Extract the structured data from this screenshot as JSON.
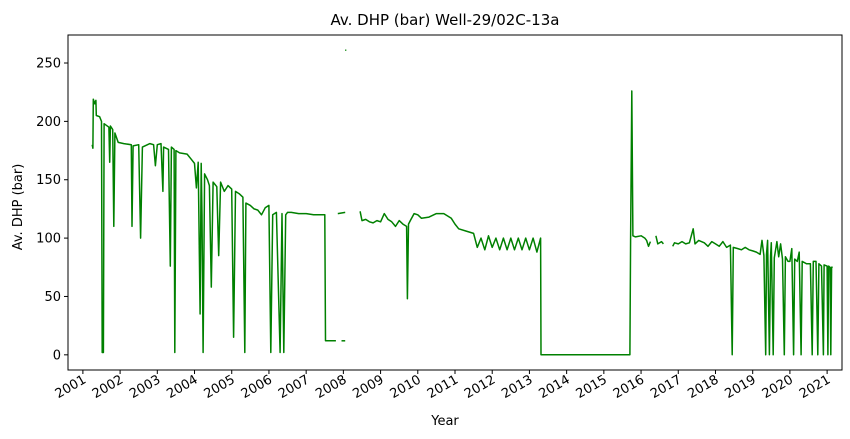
{
  "chart_data": {
    "type": "line",
    "title": "Av. DHP (bar) Well-29/02C-13a",
    "xlabel": "Year",
    "ylabel": "Av. DHP (bar)",
    "xlim": [
      2000.6,
      2021.4
    ],
    "ylim": [
      -13,
      274
    ],
    "yticks": [
      0,
      50,
      100,
      150,
      200,
      250
    ],
    "xticks": [
      "2001",
      "2002",
      "2003",
      "2004",
      "2005",
      "2006",
      "2007",
      "2008",
      "2009",
      "2010",
      "2011",
      "2012",
      "2013",
      "2014",
      "2015",
      "2016",
      "2017",
      "2018",
      "2019",
      "2020",
      "2021"
    ],
    "grid": false,
    "color": "#008000",
    "series": [
      {
        "name": "",
        "segments": [
          [
            [
              2001.25,
              180
            ],
            [
              2001.27,
              177
            ],
            [
              2001.28,
              219
            ],
            [
              2001.32,
              215
            ],
            [
              2001.35,
              218
            ],
            [
              2001.36,
              205
            ],
            [
              2001.45,
              204
            ],
            [
              2001.5,
              200
            ],
            [
              2001.52,
              2
            ],
            [
              2001.55,
              2
            ],
            [
              2001.57,
              198
            ],
            [
              2001.7,
              195
            ],
            [
              2001.72,
              165
            ],
            [
              2001.74,
              196
            ],
            [
              2001.8,
              193
            ],
            [
              2001.83,
              110
            ],
            [
              2001.86,
              190
            ],
            [
              2001.95,
              182
            ],
            [
              2002.1,
              181
            ],
            [
              2002.3,
              180
            ],
            [
              2002.32,
              110
            ],
            [
              2002.35,
              179
            ],
            [
              2002.5,
              180
            ],
            [
              2002.55,
              100
            ],
            [
              2002.6,
              178
            ],
            [
              2002.8,
              181
            ],
            [
              2002.9,
              180
            ],
            [
              2002.95,
              162
            ],
            [
              2003.0,
              180
            ],
            [
              2003.1,
              181
            ],
            [
              2003.15,
              140
            ],
            [
              2003.17,
              178
            ],
            [
              2003.3,
              176
            ],
            [
              2003.35,
              76
            ],
            [
              2003.38,
              178
            ],
            [
              2003.45,
              176
            ],
            [
              2003.47,
              2
            ],
            [
              2003.5,
              175
            ],
            [
              2003.6,
              173
            ],
            [
              2003.8,
              172
            ],
            [
              2003.9,
              168
            ],
            [
              2004.0,
              164
            ],
            [
              2004.05,
              143
            ],
            [
              2004.1,
              165
            ],
            [
              2004.15,
              35
            ],
            [
              2004.18,
              164
            ],
            [
              2004.2,
              120
            ],
            [
              2004.23,
              2
            ],
            [
              2004.27,
              155
            ],
            [
              2004.35,
              150
            ],
            [
              2004.4,
              145
            ],
            [
              2004.45,
              58
            ],
            [
              2004.5,
              148
            ],
            [
              2004.6,
              144
            ],
            [
              2004.65,
              85
            ],
            [
              2004.7,
              148
            ],
            [
              2004.8,
              140
            ],
            [
              2004.9,
              145
            ],
            [
              2005.0,
              142
            ],
            [
              2005.05,
              15
            ],
            [
              2005.1,
              140
            ],
            [
              2005.2,
              138
            ],
            [
              2005.3,
              135
            ],
            [
              2005.35,
              2
            ],
            [
              2005.38,
              130
            ],
            [
              2005.5,
              128
            ],
            [
              2005.6,
              125
            ],
            [
              2005.7,
              124
            ],
            [
              2005.8,
              120
            ],
            [
              2005.9,
              126
            ],
            [
              2006.0,
              128
            ],
            [
              2006.05,
              2
            ],
            [
              2006.1,
              120
            ],
            [
              2006.2,
              122
            ],
            [
              2006.3,
              2
            ],
            [
              2006.35,
              121
            ],
            [
              2006.4,
              2
            ],
            [
              2006.45,
              120
            ],
            [
              2006.5,
              122
            ],
            [
              2006.6,
              122
            ],
            [
              2006.8,
              121
            ],
            [
              2007.0,
              121
            ],
            [
              2007.2,
              120
            ],
            [
              2007.4,
              120
            ],
            [
              2007.5,
              120
            ],
            [
              2007.52,
              12
            ],
            [
              2007.6,
              12
            ],
            [
              2007.8,
              12
            ]
          ],
          [
            [
              2007.95,
              12
            ],
            [
              2008.05,
              12
            ]
          ],
          [
            [
              2007.85,
              121
            ],
            [
              2008.05,
              122
            ]
          ],
          [
            [
              2008.05,
              261
            ],
            [
              2008.08,
              261
            ]
          ],
          [
            [
              2008.45,
              123
            ],
            [
              2008.5,
              115
            ],
            [
              2008.6,
              116
            ],
            [
              2008.7,
              114
            ],
            [
              2008.8,
              113
            ],
            [
              2008.9,
              115
            ],
            [
              2009.0,
              114
            ],
            [
              2009.1,
              121
            ],
            [
              2009.2,
              116
            ],
            [
              2009.3,
              114
            ],
            [
              2009.4,
              110
            ],
            [
              2009.5,
              115
            ],
            [
              2009.6,
              112
            ],
            [
              2009.7,
              110
            ],
            [
              2009.72,
              48
            ],
            [
              2009.75,
              112
            ],
            [
              2009.8,
              115
            ],
            [
              2009.9,
              121
            ],
            [
              2010.0,
              120
            ],
            [
              2010.1,
              117
            ],
            [
              2010.3,
              118
            ],
            [
              2010.5,
              121
            ],
            [
              2010.7,
              121
            ],
            [
              2010.9,
              117
            ],
            [
              2011.0,
              112
            ],
            [
              2011.1,
              108
            ],
            [
              2011.3,
              106
            ],
            [
              2011.5,
              104
            ],
            [
              2011.6,
              92
            ],
            [
              2011.7,
              100
            ],
            [
              2011.8,
              90
            ],
            [
              2011.9,
              102
            ],
            [
              2012.0,
              92
            ],
            [
              2012.1,
              100
            ],
            [
              2012.2,
              90
            ],
            [
              2012.3,
              100
            ],
            [
              2012.4,
              90
            ],
            [
              2012.5,
              100
            ],
            [
              2012.6,
              90
            ],
            [
              2012.7,
              100
            ],
            [
              2012.8,
              90
            ],
            [
              2012.9,
              100
            ],
            [
              2013.0,
              90
            ],
            [
              2013.1,
              100
            ],
            [
              2013.2,
              88
            ],
            [
              2013.3,
              100
            ],
            [
              2013.31,
              0
            ],
            [
              2014.5,
              0
            ],
            [
              2015.7,
              0
            ],
            [
              2015.72,
              100
            ],
            [
              2015.75,
              226
            ],
            [
              2015.78,
              102
            ],
            [
              2015.85,
              101
            ],
            [
              2016.0,
              102
            ],
            [
              2016.1,
              100
            ],
            [
              2016.15,
              98
            ],
            [
              2016.2,
              93
            ],
            [
              2016.25,
              97
            ]
          ],
          [
            [
              2016.4,
              102
            ],
            [
              2016.45,
              95
            ],
            [
              2016.55,
              97
            ],
            [
              2016.6,
              95
            ]
          ],
          [
            [
              2016.85,
              93
            ],
            [
              2016.9,
              96
            ],
            [
              2017.0,
              95
            ],
            [
              2017.1,
              97
            ],
            [
              2017.2,
              95
            ],
            [
              2017.3,
              96
            ],
            [
              2017.4,
              108
            ],
            [
              2017.45,
              95
            ],
            [
              2017.55,
              98
            ],
            [
              2017.7,
              96
            ],
            [
              2017.8,
              93
            ],
            [
              2017.9,
              97
            ],
            [
              2018.0,
              95
            ],
            [
              2018.1,
              93
            ],
            [
              2018.2,
              97
            ],
            [
              2018.3,
              92
            ],
            [
              2018.4,
              94
            ],
            [
              2018.45,
              0
            ],
            [
              2018.48,
              92
            ],
            [
              2018.6,
              91
            ],
            [
              2018.7,
              90
            ],
            [
              2018.8,
              92
            ],
            [
              2018.9,
              90
            ],
            [
              2019.0,
              89
            ],
            [
              2019.1,
              88
            ],
            [
              2019.2,
              86
            ],
            [
              2019.25,
              98
            ],
            [
              2019.3,
              85
            ],
            [
              2019.35,
              0
            ],
            [
              2019.37,
              86
            ],
            [
              2019.4,
              98
            ],
            [
              2019.45,
              0
            ],
            [
              2019.48,
              85
            ],
            [
              2019.5,
              96
            ],
            [
              2019.55,
              0
            ],
            [
              2019.58,
              83
            ],
            [
              2019.65,
              97
            ],
            [
              2019.7,
              84
            ],
            [
              2019.75,
              95
            ],
            [
              2019.8,
              82
            ],
            [
              2019.85,
              0
            ],
            [
              2019.88,
              84
            ],
            [
              2019.95,
              80
            ],
            [
              2020.0,
              80
            ],
            [
              2020.05,
              91
            ],
            [
              2020.1,
              0
            ],
            [
              2020.13,
              82
            ],
            [
              2020.2,
              80
            ],
            [
              2020.25,
              88
            ],
            [
              2020.3,
              0
            ],
            [
              2020.33,
              80
            ],
            [
              2020.45,
              78
            ],
            [
              2020.55,
              78
            ],
            [
              2020.6,
              0
            ],
            [
              2020.63,
              80
            ],
            [
              2020.7,
              80
            ],
            [
              2020.75,
              0
            ],
            [
              2020.78,
              78
            ],
            [
              2020.85,
              76
            ],
            [
              2020.9,
              0
            ],
            [
              2020.92,
              77
            ],
            [
              2021.0,
              76
            ],
            [
              2021.02,
              0
            ],
            [
              2021.04,
              76
            ],
            [
              2021.08,
              75
            ],
            [
              2021.1,
              0
            ],
            [
              2021.12,
              75
            ],
            [
              2021.15,
              75
            ]
          ]
        ]
      }
    ]
  }
}
